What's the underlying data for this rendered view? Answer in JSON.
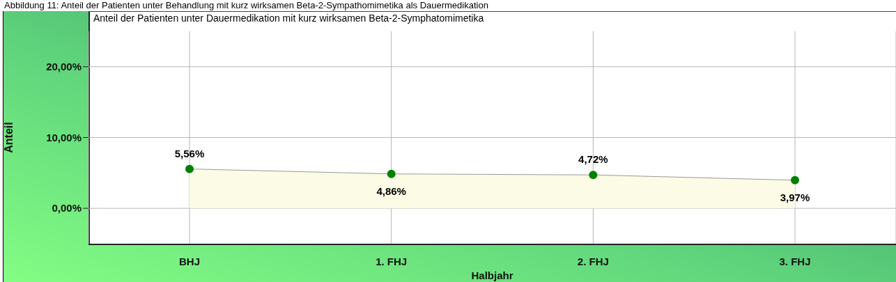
{
  "chart_data": {
    "type": "area",
    "title": "Anteil der Patienten unter Dauermedikation mit kurz wirksamen Beta-2-Symphatomimetika",
    "annotations": [
      "Abbildung 11: Anteil der Patienten unter Behandlung mit kurz wirksamen Beta-2-Sympathomimetika als Dauermedikation"
    ],
    "xlabel": "Halbjahr",
    "ylabel": "Anteil",
    "categories": [
      "BHJ",
      "1. FHJ",
      "2. FHJ",
      "3. FHJ"
    ],
    "series": [
      {
        "color": "#008000",
        "values": [
          5.56,
          4.86,
          4.72,
          3.97
        ],
        "value_labels": [
          "5,56%",
          "4,86%",
          "4,72%",
          "3,97%"
        ]
      }
    ],
    "ylim": [
      -5,
      25
    ],
    "yticks": [
      {
        "value": 0,
        "label": "0,00%"
      },
      {
        "value": 10,
        "label": "10,00%"
      },
      {
        "value": 20,
        "label": "20,00%"
      }
    ],
    "grid": true,
    "marker": "circle",
    "legend": false
  }
}
